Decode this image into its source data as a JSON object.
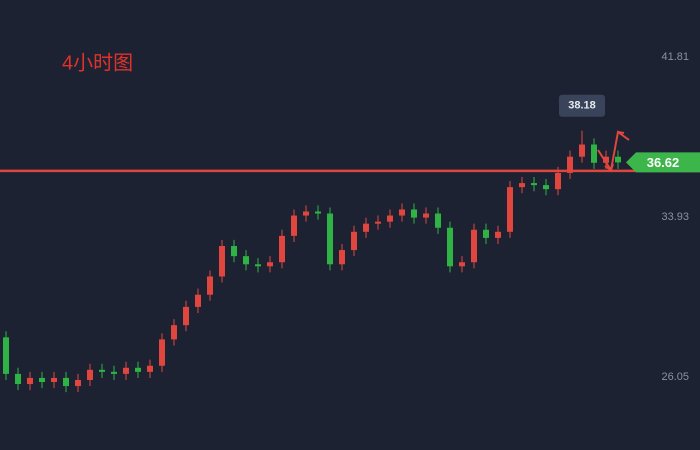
{
  "chart_data": {
    "type": "candlestick",
    "title": "4小时图",
    "ylim": [
      22.45,
      44.62
    ],
    "yticks": [
      26.05,
      33.93,
      41.81
    ],
    "grid": false,
    "up_color": "#e0463e",
    "down_color": "#2fb344",
    "hline": 36.2,
    "hline_color": "#e0463e",
    "open": [
      28.0,
      26.2,
      25.7,
      26.0,
      25.8,
      26.0,
      25.6,
      25.9,
      26.4,
      26.3,
      26.2,
      26.5,
      26.3,
      26.6,
      27.9,
      28.6,
      29.5,
      30.1,
      31.0,
      32.5,
      32.0,
      31.6,
      31.5,
      31.7,
      33.0,
      34.0,
      34.2,
      34.1,
      31.6,
      32.3,
      33.2,
      33.6,
      33.7,
      34.0,
      34.3,
      33.9,
      34.1,
      33.4,
      31.5,
      31.7,
      33.3,
      32.9,
      33.2,
      35.4,
      35.6,
      35.5,
      35.3,
      36.1,
      36.9,
      37.5,
      36.6,
      36.9
    ],
    "high": [
      28.3,
      26.5,
      26.3,
      26.3,
      26.3,
      26.3,
      26.2,
      26.7,
      26.7,
      26.6,
      26.8,
      26.8,
      26.9,
      28.2,
      28.9,
      29.8,
      30.4,
      31.3,
      32.8,
      32.8,
      32.3,
      31.9,
      32.0,
      33.3,
      34.3,
      34.5,
      34.5,
      34.4,
      32.6,
      33.5,
      33.9,
      34.0,
      34.3,
      34.6,
      34.6,
      34.4,
      34.4,
      33.7,
      32.0,
      33.6,
      33.6,
      33.5,
      35.7,
      35.9,
      35.9,
      35.8,
      36.4,
      37.2,
      38.18,
      37.8,
      37.2,
      37.2
    ],
    "low": [
      25.9,
      25.4,
      25.4,
      25.5,
      25.5,
      25.3,
      25.3,
      25.6,
      26.0,
      25.9,
      25.9,
      26.0,
      26.0,
      26.3,
      27.6,
      28.3,
      29.2,
      29.8,
      30.7,
      31.7,
      31.3,
      31.2,
      31.2,
      31.4,
      32.7,
      33.7,
      33.8,
      31.3,
      31.3,
      32.0,
      32.9,
      33.3,
      33.4,
      33.7,
      33.6,
      33.6,
      33.1,
      31.2,
      31.2,
      31.4,
      32.6,
      32.6,
      32.9,
      35.1,
      35.2,
      35.0,
      35.0,
      35.8,
      36.6,
      36.3,
      36.3,
      36.3
    ],
    "close": [
      26.2,
      25.7,
      26.0,
      25.8,
      26.0,
      25.6,
      25.9,
      26.4,
      26.3,
      26.2,
      26.5,
      26.3,
      26.6,
      27.9,
      28.6,
      29.5,
      30.1,
      31.0,
      32.5,
      32.0,
      31.6,
      31.5,
      31.7,
      33.0,
      34.0,
      34.2,
      34.1,
      31.6,
      32.3,
      33.2,
      33.6,
      33.7,
      34.0,
      34.3,
      33.9,
      34.1,
      33.4,
      31.5,
      31.7,
      33.3,
      32.9,
      33.2,
      35.4,
      35.6,
      35.5,
      35.3,
      36.1,
      36.9,
      37.5,
      36.6,
      36.9,
      36.62
    ]
  }
}
